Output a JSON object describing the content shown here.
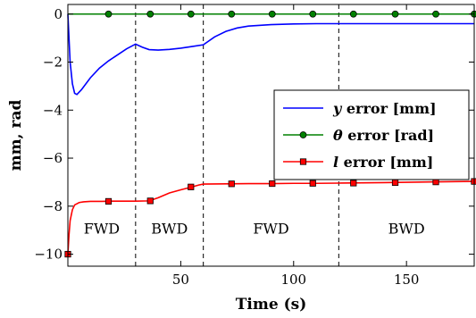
{
  "chart_data": {
    "type": "line",
    "xlabel": "Time (s)",
    "ylabel": "mm, rad",
    "xlim": [
      0,
      180
    ],
    "ylim": [
      -10.5,
      0.4
    ],
    "x_ticks": [
      50,
      100,
      150
    ],
    "y_ticks": [
      0,
      -2,
      -4,
      -6,
      -8,
      -10
    ],
    "x_tick_labels": [
      "50",
      "100",
      "150"
    ],
    "y_tick_labels": [
      "0",
      "−2",
      "−4",
      "−6",
      "−8",
      "−10"
    ],
    "grid": false,
    "legend_position": "center-right",
    "phase_boundaries": [
      30,
      60,
      120,
      180
    ],
    "phases": [
      {
        "label": "FWD",
        "x_start": 0,
        "x_end": 30
      },
      {
        "label": "BWD",
        "x_start": 30,
        "x_end": 60
      },
      {
        "label": "FWD",
        "x_start": 60,
        "x_end": 120
      },
      {
        "label": "BWD",
        "x_start": 120,
        "x_end": 180
      }
    ],
    "series": [
      {
        "name_symbol": "y",
        "name_rest": " error [mm]",
        "color": "#0000ff",
        "marker": "none",
        "x": [
          0,
          0.5,
          1,
          2,
          3,
          4,
          6,
          8,
          10,
          14,
          18,
          22,
          26,
          30,
          33,
          36,
          40,
          45,
          50,
          55,
          60,
          65,
          70,
          75,
          80,
          90,
          100,
          110,
          120,
          140,
          160,
          180
        ],
        "y": [
          0,
          -1.0,
          -2.0,
          -2.9,
          -3.3,
          -3.35,
          -3.15,
          -2.9,
          -2.65,
          -2.25,
          -1.95,
          -1.7,
          -1.45,
          -1.25,
          -1.38,
          -1.48,
          -1.5,
          -1.47,
          -1.42,
          -1.35,
          -1.28,
          -0.95,
          -0.72,
          -0.58,
          -0.5,
          -0.44,
          -0.41,
          -0.4,
          -0.4,
          -0.4,
          -0.4,
          -0.4
        ]
      },
      {
        "name_symbol": "θ",
        "name_rest": " error [rad]",
        "color": "#008000",
        "marker": "circle",
        "x": [
          0,
          180
        ],
        "y": [
          0,
          0
        ],
        "marker_x": [
          18,
          36.5,
          54.5,
          72.5,
          90.5,
          108.5,
          126.5,
          145,
          163,
          180
        ],
        "marker_y": [
          0,
          0,
          0,
          0,
          0,
          0,
          0,
          0,
          0,
          0
        ]
      },
      {
        "name_symbol": "l",
        "name_rest": " error [mm]",
        "color": "#ff0000",
        "marker": "square",
        "x": [
          0,
          0.5,
          1,
          2,
          3,
          5,
          7,
          10,
          15,
          20,
          30,
          36,
          40,
          45,
          50,
          55,
          58,
          60,
          70,
          80,
          90,
          100,
          110,
          120,
          140,
          160,
          180
        ],
        "y": [
          -10.0,
          -9.2,
          -8.6,
          -8.15,
          -7.95,
          -7.85,
          -7.82,
          -7.8,
          -7.8,
          -7.79,
          -7.79,
          -7.78,
          -7.65,
          -7.45,
          -7.32,
          -7.2,
          -7.12,
          -7.08,
          -7.07,
          -7.06,
          -7.06,
          -7.05,
          -7.05,
          -7.04,
          -7.02,
          -6.99,
          -6.97
        ],
        "marker_x": [
          0,
          18,
          36.5,
          54.5,
          72.5,
          90.5,
          108.5,
          126.5,
          145,
          163,
          180
        ],
        "marker_y": [
          -10.0,
          -7.8,
          -7.78,
          -7.2,
          -7.07,
          -7.06,
          -7.05,
          -7.04,
          -7.02,
          -6.99,
          -6.97
        ]
      }
    ]
  }
}
